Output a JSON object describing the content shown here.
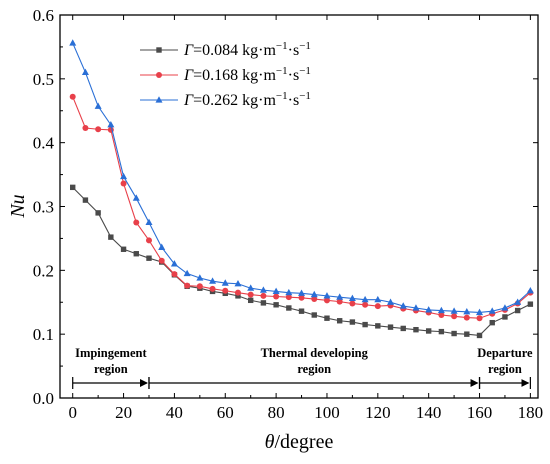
{
  "chart_data": {
    "type": "line",
    "xlabel_symbol": "θ",
    "xlabel_unit": "/degree",
    "ylabel": "Nu",
    "xlim": [
      -5,
      183
    ],
    "ylim": [
      0,
      0.6
    ],
    "xticks": [
      0,
      20,
      40,
      60,
      80,
      100,
      120,
      140,
      160,
      180
    ],
    "yticks": [
      0.0,
      0.1,
      0.2,
      0.3,
      0.4,
      0.5,
      0.6
    ],
    "legend_position": "top-center",
    "x": [
      0,
      5,
      10,
      15,
      20,
      25,
      30,
      35,
      40,
      45,
      50,
      55,
      60,
      65,
      70,
      75,
      80,
      85,
      90,
      95,
      100,
      105,
      110,
      115,
      120,
      125,
      130,
      135,
      140,
      145,
      150,
      155,
      160,
      165,
      170,
      175,
      180
    ],
    "series": [
      {
        "name": "Γ=0.084 kg·m⁻¹·s⁻¹",
        "legend_symbol": "Γ",
        "legend_rest": "=0.084 kg·m",
        "legend_exp1": "−1",
        "legend_mid": "·s",
        "legend_exp2": "−1",
        "color": "#4a4a4a",
        "marker": "square",
        "values": [
          0.33,
          0.31,
          0.29,
          0.252,
          0.233,
          0.226,
          0.219,
          0.213,
          0.193,
          0.175,
          0.172,
          0.167,
          0.164,
          0.16,
          0.153,
          0.149,
          0.146,
          0.141,
          0.136,
          0.13,
          0.125,
          0.121,
          0.119,
          0.115,
          0.113,
          0.111,
          0.109,
          0.107,
          0.105,
          0.104,
          0.101,
          0.1,
          0.098,
          0.118,
          0.127,
          0.137,
          0.147
        ]
      },
      {
        "name": "Γ=0.168 kg·m⁻¹·s⁻¹",
        "legend_symbol": "Γ",
        "legend_rest": "=0.168 kg·m",
        "legend_exp1": "−1",
        "legend_mid": "·s",
        "legend_exp2": "−1",
        "color": "#e8404a",
        "marker": "circle",
        "values": [
          0.472,
          0.423,
          0.421,
          0.42,
          0.336,
          0.275,
          0.247,
          0.215,
          0.194,
          0.176,
          0.175,
          0.171,
          0.168,
          0.165,
          0.162,
          0.16,
          0.159,
          0.158,
          0.157,
          0.155,
          0.153,
          0.151,
          0.148,
          0.146,
          0.144,
          0.145,
          0.14,
          0.137,
          0.134,
          0.13,
          0.128,
          0.126,
          0.125,
          0.132,
          0.138,
          0.148,
          0.165
        ]
      },
      {
        "name": "Γ=0.262 kg·m⁻¹·s⁻¹",
        "legend_symbol": "Γ",
        "legend_rest": "=0.262 kg·m",
        "legend_exp1": "−1",
        "legend_mid": "·s",
        "legend_exp2": "−1",
        "color": "#2a6fd6",
        "marker": "triangle",
        "values": [
          0.556,
          0.51,
          0.457,
          0.428,
          0.347,
          0.313,
          0.275,
          0.236,
          0.21,
          0.195,
          0.188,
          0.183,
          0.18,
          0.179,
          0.172,
          0.169,
          0.167,
          0.165,
          0.164,
          0.162,
          0.16,
          0.158,
          0.156,
          0.154,
          0.154,
          0.15,
          0.144,
          0.141,
          0.138,
          0.137,
          0.136,
          0.135,
          0.134,
          0.136,
          0.141,
          0.15,
          0.168
        ]
      }
    ],
    "regions": [
      {
        "label_line1": "Impingement",
        "label_line2": "region",
        "x_start": 0,
        "x_end": 30
      },
      {
        "label_line1": "Thermal developing",
        "label_line2": "region",
        "x_start": 30,
        "x_end": 160
      },
      {
        "label_line1": "Departure",
        "label_line2": "region",
        "x_start": 160,
        "x_end": 180
      }
    ]
  }
}
